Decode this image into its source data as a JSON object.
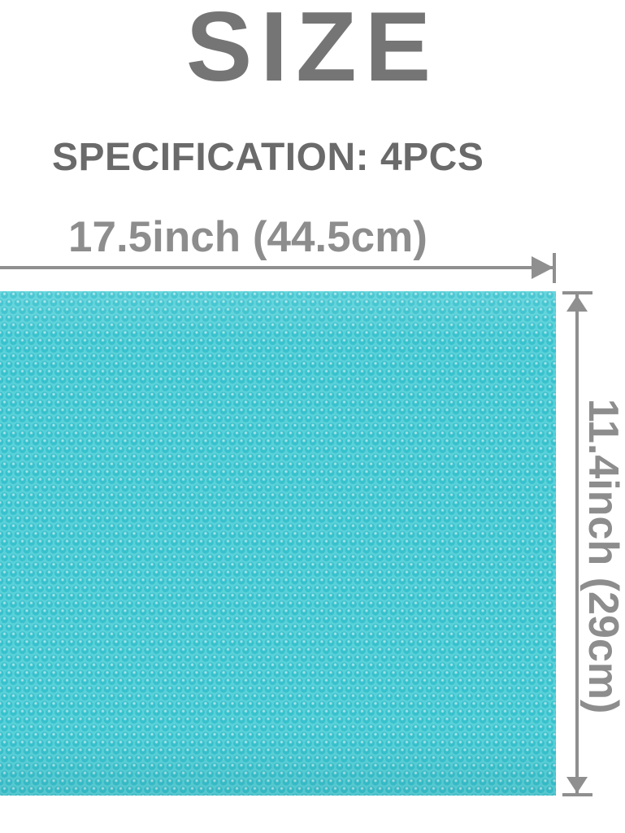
{
  "header": {
    "title": "SIZE",
    "specification": "SPECIFICATION: 4PCS"
  },
  "dimensions": {
    "width_label": "17.5inch (44.5cm)",
    "height_label": "11.4inch (29cm)"
  },
  "product": {
    "description": "turquoise dotted-texture mat swatch",
    "quantity": "4PCS"
  },
  "colors": {
    "title_text": "#757575",
    "specification_text": "#6a6a6a",
    "dimension_text": "#8d8d8d",
    "dimension_lines": "#8f8f8f",
    "mat_base": "#5ad1d9",
    "mat_dot": "#37c1cd"
  }
}
